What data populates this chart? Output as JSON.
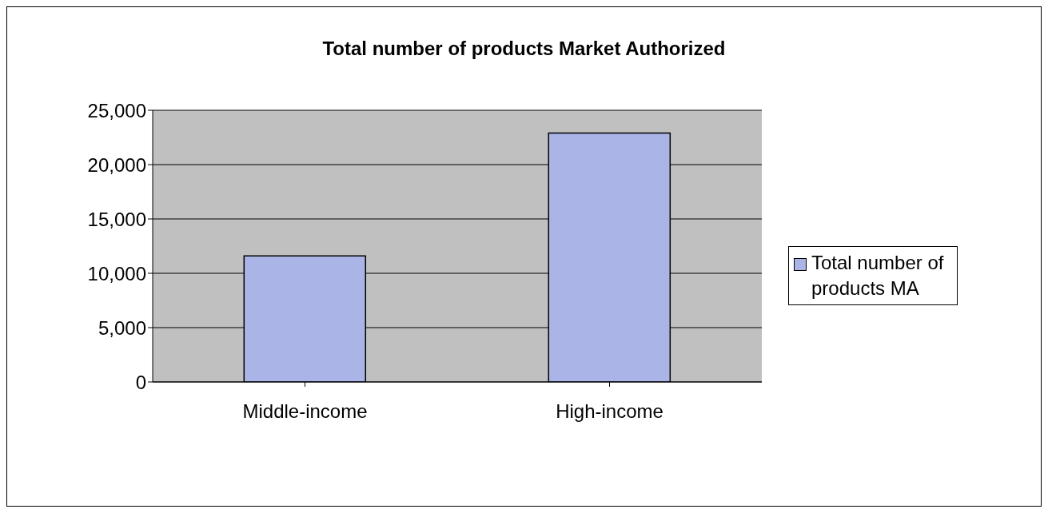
{
  "chart_data": {
    "type": "bar",
    "title": "Total number of products Market Authorized",
    "categories": [
      "Middle-income",
      "High-income"
    ],
    "series": [
      {
        "name": "Total number of products MA",
        "color": "#aab4e6",
        "values": [
          11600,
          22900
        ]
      }
    ],
    "ylim": [
      0,
      25000
    ],
    "yticks": [
      {
        "value": 0,
        "label": "0"
      },
      {
        "value": 5000,
        "label": "5,000"
      },
      {
        "value": 10000,
        "label": "10,000"
      },
      {
        "value": 15000,
        "label": "15,000"
      },
      {
        "value": 20000,
        "label": "20,000"
      },
      {
        "value": 25000,
        "label": "25,000"
      }
    ],
    "grid": "y",
    "legend": "right"
  }
}
